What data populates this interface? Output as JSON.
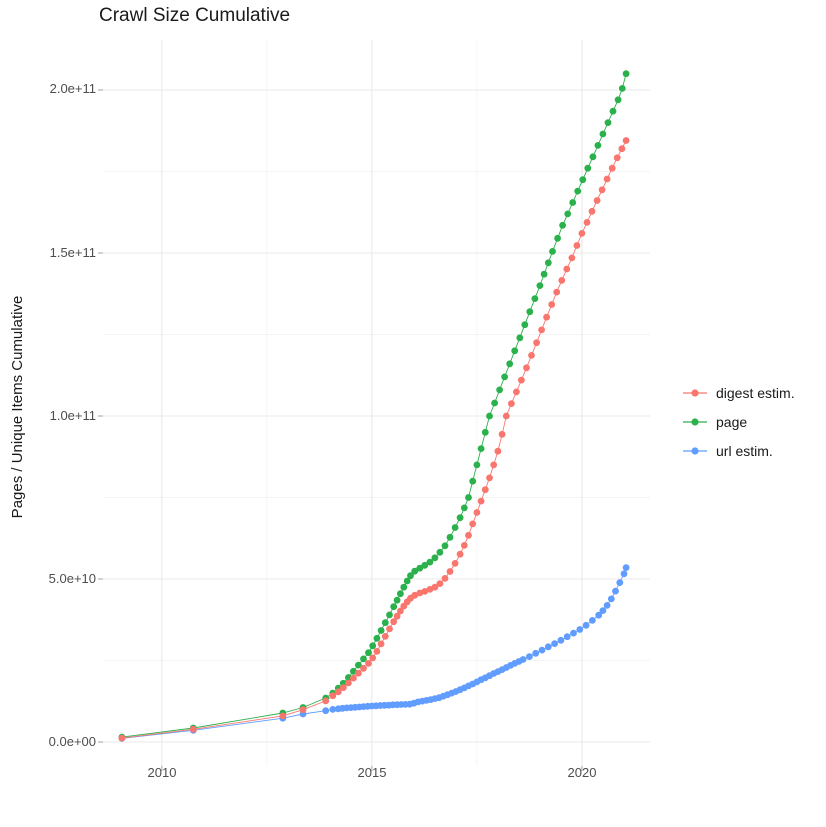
{
  "title": "Crawl Size Cumulative",
  "colors": {
    "digest_series": "#F8766D",
    "page_series": "#2BB14C",
    "url_series": "#619CFF",
    "grid_major": "#E9E9E9",
    "grid_minor": "#F4F4F4",
    "axis_tick_mark": "#ABABAB",
    "tick_text": "#4D4D4D",
    "title_text": "#1A1A1A",
    "panel_background": "#FFFFFF"
  },
  "chart_data": {
    "type": "scatter",
    "title": "Crawl Size Cumulative",
    "xlabel": "",
    "ylabel": "Pages / Unique Items Cumulative",
    "legend_position": "right",
    "grid": "major and minor, light gray on white",
    "value_unit": "billions (1e9) of pages / unique items",
    "xlim": [
      2008.6,
      2021.62
    ],
    "ylim_e9": [
      -7.36,
      215.34
    ],
    "x_ticks": [
      {
        "value": 2010,
        "label": "2010"
      },
      {
        "value": 2015,
        "label": "2015"
      },
      {
        "value": 2020,
        "label": "2020"
      }
    ],
    "x_minor": [
      2012.5,
      2017.5
    ],
    "y_ticks": [
      {
        "value_e9": 200,
        "label": "2.0e+11"
      },
      {
        "value_e9": 150,
        "label": "1.5e+11"
      },
      {
        "value_e9": 100,
        "label": "1.0e+11"
      },
      {
        "value_e9": 50,
        "label": "5.0e+10"
      },
      {
        "value_e9": 0,
        "label": "0.0e+00"
      }
    ],
    "y_minor_e9": [
      25,
      75,
      125,
      175
    ],
    "series": [
      {
        "name": "digest estim.",
        "color": "#F8766D",
        "points_year_e9": [
          [
            2009.05,
            1.2
          ],
          [
            2010.75,
            3.9
          ],
          [
            2012.88,
            8.0
          ],
          [
            2013.36,
            9.9
          ],
          [
            2013.9,
            12.6
          ],
          [
            2014.07,
            14.2
          ],
          [
            2014.2,
            15.4
          ],
          [
            2014.32,
            16.7
          ],
          [
            2014.44,
            18.1
          ],
          [
            2014.56,
            19.6
          ],
          [
            2014.68,
            21.1
          ],
          [
            2014.8,
            22.6
          ],
          [
            2014.92,
            24.1
          ],
          [
            2015.02,
            25.8
          ],
          [
            2015.12,
            27.8
          ],
          [
            2015.22,
            30.1
          ],
          [
            2015.32,
            32.4
          ],
          [
            2015.42,
            34.7
          ],
          [
            2015.52,
            36.9
          ],
          [
            2015.6,
            38.6
          ],
          [
            2015.68,
            40.2
          ],
          [
            2015.76,
            41.7
          ],
          [
            2015.84,
            43.0
          ],
          [
            2015.92,
            44.1
          ],
          [
            2016.02,
            45.0
          ],
          [
            2016.14,
            45.7
          ],
          [
            2016.26,
            46.2
          ],
          [
            2016.38,
            46.8
          ],
          [
            2016.5,
            47.5
          ],
          [
            2016.62,
            48.6
          ],
          [
            2016.74,
            50.2
          ],
          [
            2016.86,
            52.3
          ],
          [
            2016.98,
            54.8
          ],
          [
            2017.1,
            57.6
          ],
          [
            2017.2,
            60.3
          ],
          [
            2017.3,
            63.4
          ],
          [
            2017.4,
            66.9
          ],
          [
            2017.5,
            70.4
          ],
          [
            2017.6,
            73.9
          ],
          [
            2017.7,
            77.4
          ],
          [
            2017.8,
            81.0
          ],
          [
            2017.9,
            85.0
          ],
          [
            2018.0,
            89.2
          ],
          [
            2018.1,
            94.4
          ],
          [
            2018.2,
            100.0
          ],
          [
            2018.32,
            103.8
          ],
          [
            2018.44,
            107.4
          ],
          [
            2018.56,
            111.0
          ],
          [
            2018.68,
            114.8
          ],
          [
            2018.8,
            118.6
          ],
          [
            2018.92,
            122.5
          ],
          [
            2019.04,
            126.4
          ],
          [
            2019.16,
            130.3
          ],
          [
            2019.28,
            134.2
          ],
          [
            2019.4,
            138.0
          ],
          [
            2019.52,
            141.6
          ],
          [
            2019.64,
            145.1
          ],
          [
            2019.76,
            148.5
          ],
          [
            2019.88,
            152.3
          ],
          [
            2020.0,
            156.0
          ],
          [
            2020.12,
            159.4
          ],
          [
            2020.24,
            162.8
          ],
          [
            2020.36,
            166.1
          ],
          [
            2020.48,
            169.4
          ],
          [
            2020.6,
            172.7
          ],
          [
            2020.72,
            176.0
          ],
          [
            2020.84,
            179.2
          ],
          [
            2020.95,
            182.0
          ],
          [
            2021.05,
            184.5
          ]
        ]
      },
      {
        "name": "page",
        "color": "#2BB14C",
        "points_year_e9": [
          [
            2009.05,
            1.5
          ],
          [
            2010.75,
            4.3
          ],
          [
            2012.88,
            8.9
          ],
          [
            2013.36,
            10.6
          ],
          [
            2013.9,
            13.5
          ],
          [
            2014.07,
            15.0
          ],
          [
            2014.2,
            16.5
          ],
          [
            2014.32,
            18.0
          ],
          [
            2014.44,
            19.8
          ],
          [
            2014.56,
            21.7
          ],
          [
            2014.68,
            23.6
          ],
          [
            2014.8,
            25.5
          ],
          [
            2014.92,
            27.4
          ],
          [
            2015.02,
            29.5
          ],
          [
            2015.12,
            31.8
          ],
          [
            2015.22,
            34.2
          ],
          [
            2015.32,
            36.6
          ],
          [
            2015.42,
            39.0
          ],
          [
            2015.52,
            41.5
          ],
          [
            2015.6,
            43.5
          ],
          [
            2015.68,
            45.5
          ],
          [
            2015.76,
            47.5
          ],
          [
            2015.84,
            49.4
          ],
          [
            2015.92,
            51.0
          ],
          [
            2016.02,
            52.4
          ],
          [
            2016.14,
            53.3
          ],
          [
            2016.26,
            54.2
          ],
          [
            2016.38,
            55.2
          ],
          [
            2016.5,
            56.5
          ],
          [
            2016.62,
            58.2
          ],
          [
            2016.74,
            60.2
          ],
          [
            2016.86,
            62.8
          ],
          [
            2016.98,
            65.8
          ],
          [
            2017.1,
            68.8
          ],
          [
            2017.2,
            71.8
          ],
          [
            2017.3,
            75.0
          ],
          [
            2017.4,
            80.0
          ],
          [
            2017.5,
            85.0
          ],
          [
            2017.6,
            90.0
          ],
          [
            2017.7,
            95.0
          ],
          [
            2017.8,
            100.0
          ],
          [
            2017.92,
            104.0
          ],
          [
            2018.04,
            108.0
          ],
          [
            2018.16,
            112.0
          ],
          [
            2018.28,
            116.0
          ],
          [
            2018.4,
            120.0
          ],
          [
            2018.52,
            124.0
          ],
          [
            2018.64,
            128.0
          ],
          [
            2018.76,
            132.0
          ],
          [
            2018.88,
            136.0
          ],
          [
            2019.0,
            140.0
          ],
          [
            2019.1,
            143.5
          ],
          [
            2019.2,
            147.0
          ],
          [
            2019.3,
            150.5
          ],
          [
            2019.42,
            154.5
          ],
          [
            2019.54,
            158.5
          ],
          [
            2019.66,
            162.0
          ],
          [
            2019.78,
            165.5
          ],
          [
            2019.9,
            169.0
          ],
          [
            2020.02,
            172.5
          ],
          [
            2020.14,
            176.0
          ],
          [
            2020.26,
            179.5
          ],
          [
            2020.38,
            183.0
          ],
          [
            2020.5,
            186.5
          ],
          [
            2020.62,
            190.0
          ],
          [
            2020.74,
            193.5
          ],
          [
            2020.86,
            197.0
          ],
          [
            2020.96,
            200.5
          ],
          [
            2021.05,
            205.0
          ]
        ]
      },
      {
        "name": "url estim.",
        "color": "#619CFF",
        "points_year_e9": [
          [
            2009.05,
            1.1
          ],
          [
            2010.75,
            3.6
          ],
          [
            2012.88,
            7.3
          ],
          [
            2013.36,
            8.6
          ],
          [
            2013.9,
            9.6
          ],
          [
            2014.07,
            10.0
          ],
          [
            2014.2,
            10.2
          ],
          [
            2014.3,
            10.35
          ],
          [
            2014.4,
            10.45
          ],
          [
            2014.5,
            10.55
          ],
          [
            2014.6,
            10.65
          ],
          [
            2014.7,
            10.75
          ],
          [
            2014.8,
            10.85
          ],
          [
            2014.9,
            10.95
          ],
          [
            2015.0,
            11.05
          ],
          [
            2015.1,
            11.1
          ],
          [
            2015.2,
            11.2
          ],
          [
            2015.3,
            11.25
          ],
          [
            2015.4,
            11.3
          ],
          [
            2015.5,
            11.4
          ],
          [
            2015.6,
            11.45
          ],
          [
            2015.7,
            11.5
          ],
          [
            2015.8,
            11.55
          ],
          [
            2015.9,
            11.6
          ],
          [
            2016.0,
            11.9
          ],
          [
            2016.1,
            12.3
          ],
          [
            2016.2,
            12.55
          ],
          [
            2016.3,
            12.75
          ],
          [
            2016.4,
            13.0
          ],
          [
            2016.5,
            13.3
          ],
          [
            2016.6,
            13.6
          ],
          [
            2016.7,
            14.05
          ],
          [
            2016.8,
            14.5
          ],
          [
            2016.9,
            15.0
          ],
          [
            2017.0,
            15.5
          ],
          [
            2017.1,
            16.05
          ],
          [
            2017.2,
            16.6
          ],
          [
            2017.3,
            17.2
          ],
          [
            2017.4,
            17.8
          ],
          [
            2017.5,
            18.45
          ],
          [
            2017.6,
            19.1
          ],
          [
            2017.7,
            19.7
          ],
          [
            2017.8,
            20.35
          ],
          [
            2017.9,
            21.0
          ],
          [
            2018.0,
            21.6
          ],
          [
            2018.1,
            22.2
          ],
          [
            2018.2,
            22.85
          ],
          [
            2018.3,
            23.5
          ],
          [
            2018.4,
            24.1
          ],
          [
            2018.5,
            24.7
          ],
          [
            2018.6,
            25.3
          ],
          [
            2018.75,
            26.2
          ],
          [
            2018.9,
            27.2
          ],
          [
            2019.05,
            28.2
          ],
          [
            2019.2,
            29.2
          ],
          [
            2019.35,
            30.2
          ],
          [
            2019.5,
            31.2
          ],
          [
            2019.65,
            32.3
          ],
          [
            2019.8,
            33.4
          ],
          [
            2019.95,
            34.5
          ],
          [
            2020.1,
            35.8
          ],
          [
            2020.25,
            37.3
          ],
          [
            2020.4,
            38.9
          ],
          [
            2020.5,
            40.3
          ],
          [
            2020.6,
            41.9
          ],
          [
            2020.7,
            43.9
          ],
          [
            2020.8,
            46.3
          ],
          [
            2020.9,
            48.9
          ],
          [
            2021.0,
            51.6
          ],
          [
            2021.05,
            53.5
          ]
        ]
      }
    ]
  },
  "legend": {
    "items": [
      {
        "label": "digest estim."
      },
      {
        "label": "page"
      },
      {
        "label": "url estim."
      }
    ]
  }
}
